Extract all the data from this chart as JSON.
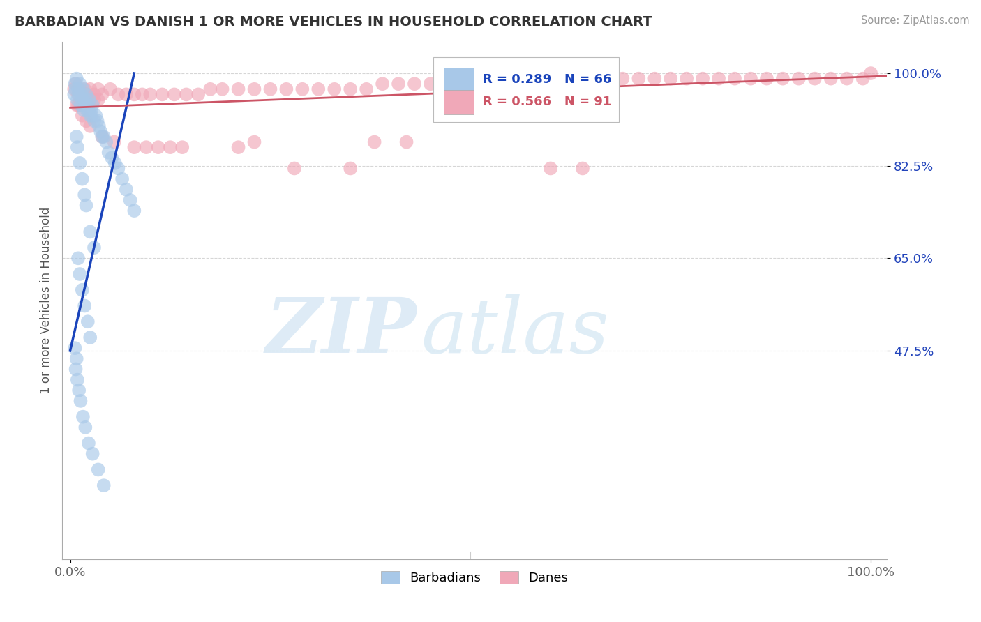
{
  "title": "BARBADIAN VS DANISH 1 OR MORE VEHICLES IN HOUSEHOLD CORRELATION CHART",
  "source_text": "Source: ZipAtlas.com",
  "ylabel": "1 or more Vehicles in Household",
  "xlim": [
    -0.01,
    1.02
  ],
  "ylim": [
    0.08,
    1.06
  ],
  "x_tick_labels": [
    "0.0%",
    "100.0%"
  ],
  "x_tick_positions": [
    0.0,
    1.0
  ],
  "y_tick_labels": [
    "100.0%",
    "82.5%",
    "65.0%",
    "47.5%"
  ],
  "y_tick_positions": [
    1.0,
    0.825,
    0.65,
    0.475
  ],
  "legend_labels": [
    "Barbadians",
    "Danes"
  ],
  "blue_color": "#a8c8e8",
  "pink_color": "#f0a8b8",
  "blue_line_color": "#1a44bb",
  "pink_line_color": "#cc5566",
  "watermark_zip_color": "#c8dff0",
  "watermark_atlas_color": "#b8d8ec",
  "title_color": "#333333",
  "grid_color": "#cccccc",
  "ytick_color": "#2244bb",
  "source_color": "#999999",
  "blue_x": [
    0.005,
    0.006,
    0.007,
    0.008,
    0.009,
    0.01,
    0.011,
    0.012,
    0.013,
    0.014,
    0.015,
    0.016,
    0.017,
    0.018,
    0.019,
    0.02,
    0.021,
    0.022,
    0.023,
    0.024,
    0.025,
    0.026,
    0.027,
    0.028,
    0.03,
    0.032,
    0.034,
    0.036,
    0.038,
    0.04,
    0.042,
    0.045,
    0.048,
    0.052,
    0.056,
    0.06,
    0.065,
    0.07,
    0.075,
    0.08,
    0.008,
    0.009,
    0.012,
    0.015,
    0.018,
    0.02,
    0.025,
    0.03,
    0.01,
    0.012,
    0.015,
    0.018,
    0.022,
    0.025,
    0.006,
    0.008,
    0.007,
    0.009,
    0.011,
    0.013,
    0.016,
    0.019,
    0.023,
    0.028,
    0.035,
    0.042
  ],
  "blue_y": [
    0.96,
    0.98,
    0.97,
    0.99,
    0.95,
    0.97,
    0.96,
    0.98,
    0.94,
    0.96,
    0.95,
    0.97,
    0.93,
    0.95,
    0.94,
    0.96,
    0.93,
    0.94,
    0.93,
    0.95,
    0.92,
    0.93,
    0.92,
    0.94,
    0.91,
    0.92,
    0.91,
    0.9,
    0.89,
    0.88,
    0.88,
    0.87,
    0.85,
    0.84,
    0.83,
    0.82,
    0.8,
    0.78,
    0.76,
    0.74,
    0.88,
    0.86,
    0.83,
    0.8,
    0.77,
    0.75,
    0.7,
    0.67,
    0.65,
    0.62,
    0.59,
    0.56,
    0.53,
    0.5,
    0.48,
    0.46,
    0.44,
    0.42,
    0.4,
    0.38,
    0.35,
    0.33,
    0.3,
    0.28,
    0.25,
    0.22
  ],
  "pink_x": [
    0.005,
    0.007,
    0.01,
    0.012,
    0.015,
    0.018,
    0.02,
    0.025,
    0.03,
    0.035,
    0.04,
    0.05,
    0.06,
    0.07,
    0.08,
    0.09,
    0.1,
    0.115,
    0.13,
    0.145,
    0.16,
    0.175,
    0.19,
    0.21,
    0.23,
    0.25,
    0.27,
    0.29,
    0.31,
    0.33,
    0.35,
    0.37,
    0.39,
    0.41,
    0.43,
    0.45,
    0.47,
    0.49,
    0.51,
    0.53,
    0.55,
    0.57,
    0.59,
    0.61,
    0.63,
    0.65,
    0.67,
    0.69,
    0.71,
    0.73,
    0.75,
    0.77,
    0.79,
    0.81,
    0.83,
    0.85,
    0.87,
    0.89,
    0.91,
    0.93,
    0.95,
    0.97,
    0.99,
    1.0,
    0.008,
    0.01,
    0.013,
    0.015,
    0.02,
    0.025,
    0.03,
    0.035,
    0.015,
    0.02,
    0.025,
    0.04,
    0.055,
    0.28,
    0.35,
    0.6,
    0.64,
    0.08,
    0.095,
    0.11,
    0.125,
    0.14,
    0.21,
    0.23,
    0.38,
    0.42
  ],
  "pink_y": [
    0.97,
    0.98,
    0.96,
    0.97,
    0.96,
    0.97,
    0.96,
    0.97,
    0.96,
    0.97,
    0.96,
    0.97,
    0.96,
    0.96,
    0.96,
    0.96,
    0.96,
    0.96,
    0.96,
    0.96,
    0.96,
    0.97,
    0.97,
    0.97,
    0.97,
    0.97,
    0.97,
    0.97,
    0.97,
    0.97,
    0.97,
    0.97,
    0.98,
    0.98,
    0.98,
    0.98,
    0.98,
    0.98,
    0.98,
    0.98,
    0.98,
    0.98,
    0.98,
    0.98,
    0.98,
    0.98,
    0.98,
    0.99,
    0.99,
    0.99,
    0.99,
    0.99,
    0.99,
    0.99,
    0.99,
    0.99,
    0.99,
    0.99,
    0.99,
    0.99,
    0.99,
    0.99,
    0.99,
    1.0,
    0.94,
    0.94,
    0.94,
    0.94,
    0.95,
    0.95,
    0.95,
    0.95,
    0.92,
    0.91,
    0.9,
    0.88,
    0.87,
    0.82,
    0.82,
    0.82,
    0.82,
    0.86,
    0.86,
    0.86,
    0.86,
    0.86,
    0.86,
    0.87,
    0.87,
    0.87
  ],
  "blue_line_x": [
    0.0,
    0.08
  ],
  "blue_line_y": [
    0.475,
    1.0
  ],
  "pink_line_x": [
    0.0,
    1.02
  ],
  "pink_line_y": [
    0.935,
    0.995
  ]
}
